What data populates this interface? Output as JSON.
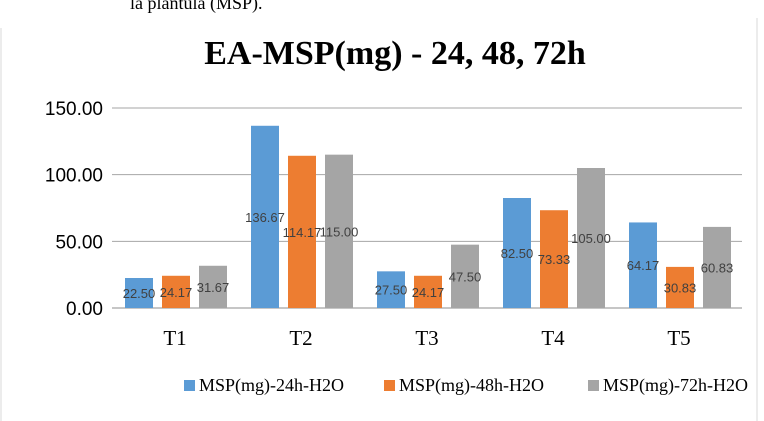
{
  "top_text": "la plántula (MSP).",
  "colors": {
    "series1": "#5B9BD5",
    "series2": "#ED7D31",
    "series3": "#A5A5A5",
    "grid": "#A6A6A6"
  },
  "chart_data": {
    "type": "bar",
    "title": "EA-MSP(mg) - 24, 48, 72h",
    "xlabel": "",
    "ylabel": "",
    "categories": [
      "T1",
      "T2",
      "T3",
      "T4",
      "T5"
    ],
    "ylim": [
      0,
      150
    ],
    "yticks": [
      0,
      50,
      100,
      150
    ],
    "ytick_labels": [
      "0.00",
      "50.00",
      "100.00",
      "150.00"
    ],
    "grid": true,
    "legend_position": "bottom",
    "series": [
      {
        "name": "MSP(mg)-24h-H2O",
        "values": [
          22.5,
          136.67,
          27.5,
          82.5,
          64.17
        ],
        "labels": [
          "22.50",
          "136.67",
          "27.50",
          "82.50",
          "64.17"
        ]
      },
      {
        "name": "MSP(mg)-48h-H2O",
        "values": [
          24.17,
          114.17,
          24.17,
          73.33,
          30.83
        ],
        "labels": [
          "24.17",
          "114.17",
          "24.17",
          "73.33",
          "30.83"
        ]
      },
      {
        "name": "MSP(mg)-72h-H2O",
        "values": [
          31.67,
          115.0,
          47.5,
          105.0,
          60.83
        ],
        "labels": [
          "31.67",
          "115.00",
          "47.50",
          "105.00",
          "60.83"
        ]
      }
    ]
  }
}
